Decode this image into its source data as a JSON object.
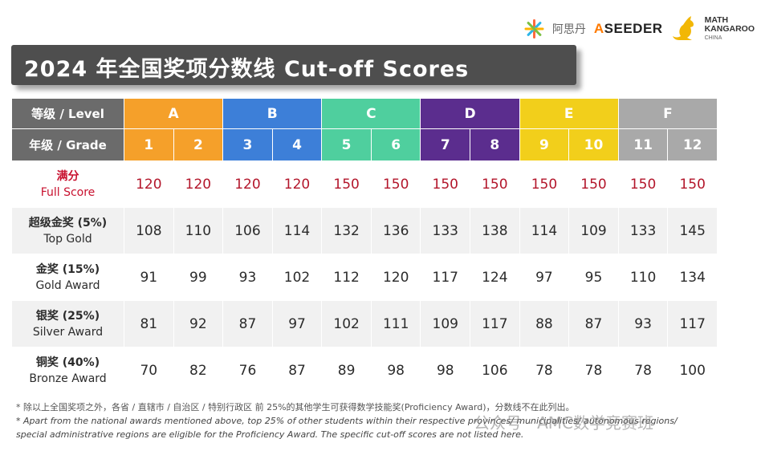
{
  "logos": {
    "aisidan_text": "阿思丹",
    "aseeder_a": "A",
    "aseeder_rest": "SEEDER",
    "mk_line1": "MATH",
    "mk_line2": "KANGAROO",
    "mk_line3": "CHINA"
  },
  "title": "2024 年全国奖项分数线 Cut-off Scores",
  "colors": {
    "header_gray": "#6b6b6b",
    "level_A": "#f5a02a",
    "level_B": "#3d7fd8",
    "level_C": "#4fcf9e",
    "level_D": "#5b2d8e",
    "level_E": "#f2cf1b",
    "level_F": "#a9a9a9",
    "full_score_red": "#c8102e"
  },
  "table": {
    "level_label": "等级 / Level",
    "grade_label": "年级 / Grade",
    "levels": [
      "A",
      "B",
      "C",
      "D",
      "E",
      "F"
    ],
    "grades": [
      "1",
      "2",
      "3",
      "4",
      "5",
      "6",
      "7",
      "8",
      "9",
      "10",
      "11",
      "12"
    ],
    "rows": [
      {
        "label_cn": "满分",
        "label_en": "Full Score",
        "values": [
          "120",
          "120",
          "120",
          "120",
          "150",
          "150",
          "150",
          "150",
          "150",
          "150",
          "150",
          "150"
        ]
      },
      {
        "label_cn": "超级金奖 (5%)",
        "label_en": "Top Gold",
        "values": [
          "108",
          "110",
          "106",
          "114",
          "132",
          "136",
          "133",
          "138",
          "114",
          "109",
          "133",
          "145"
        ]
      },
      {
        "label_cn": "金奖 (15%)",
        "label_en": "Gold Award",
        "values": [
          "91",
          "99",
          "93",
          "102",
          "112",
          "120",
          "117",
          "124",
          "97",
          "95",
          "110",
          "134"
        ]
      },
      {
        "label_cn": "银奖 (25%)",
        "label_en": "Silver Award",
        "values": [
          "81",
          "92",
          "87",
          "97",
          "102",
          "111",
          "109",
          "117",
          "88",
          "87",
          "93",
          "117"
        ]
      },
      {
        "label_cn": "铜奖 (40%)",
        "label_en": "Bronze Award",
        "values": [
          "70",
          "82",
          "76",
          "87",
          "89",
          "98",
          "98",
          "106",
          "78",
          "78",
          "78",
          "100"
        ]
      }
    ]
  },
  "notes": {
    "line1": "* 除以上全国奖项之外，各省 / 直辖市 / 自治区 / 特别行政区 前 25%的其他学生可获得数学技能奖(Proficiency Award)，分数线不在此列出。",
    "line2": "* Apart from the national awards mentioned above, top 25% of other students within their respective provinces/ municipalities/ autonomous regions/",
    "line3": "special administrative regions are eligible for the Proficiency Award. The specific cut-off scores are not listed here."
  },
  "watermark": "公众号 · AMC数学竞赛班",
  "nav_prev_icon": "‹"
}
